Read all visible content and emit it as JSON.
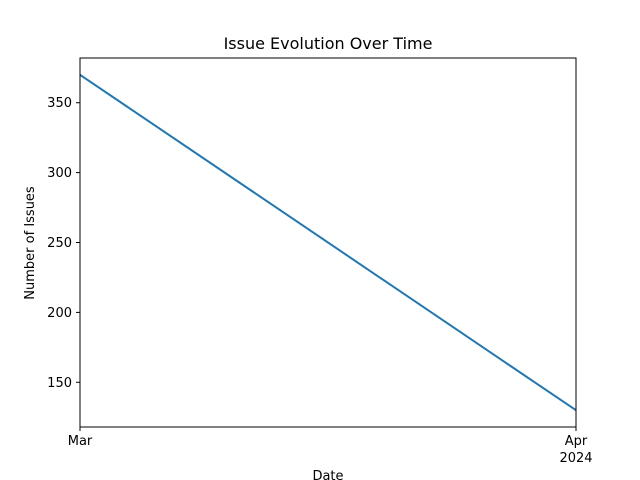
{
  "chart_data": {
    "type": "line",
    "title": "Issue Evolution Over Time",
    "xlabel": "Date",
    "ylabel": "Number of Issues",
    "x": [
      "2024-03-01",
      "2024-04-01"
    ],
    "series": [
      {
        "values": [
          370,
          130
        ],
        "color": "#1f77b4"
      }
    ],
    "xlim": [
      "2024-03-01",
      "2024-04-01"
    ],
    "ylim": [
      118,
      382
    ],
    "x_ticks": [
      {
        "value": "2024-03-01",
        "label": "Mar",
        "sublabel": ""
      },
      {
        "value": "2024-04-01",
        "label": "Apr",
        "sublabel": "2024"
      }
    ],
    "y_ticks": [
      150,
      200,
      250,
      300,
      350
    ],
    "grid": false,
    "legend": "none"
  }
}
